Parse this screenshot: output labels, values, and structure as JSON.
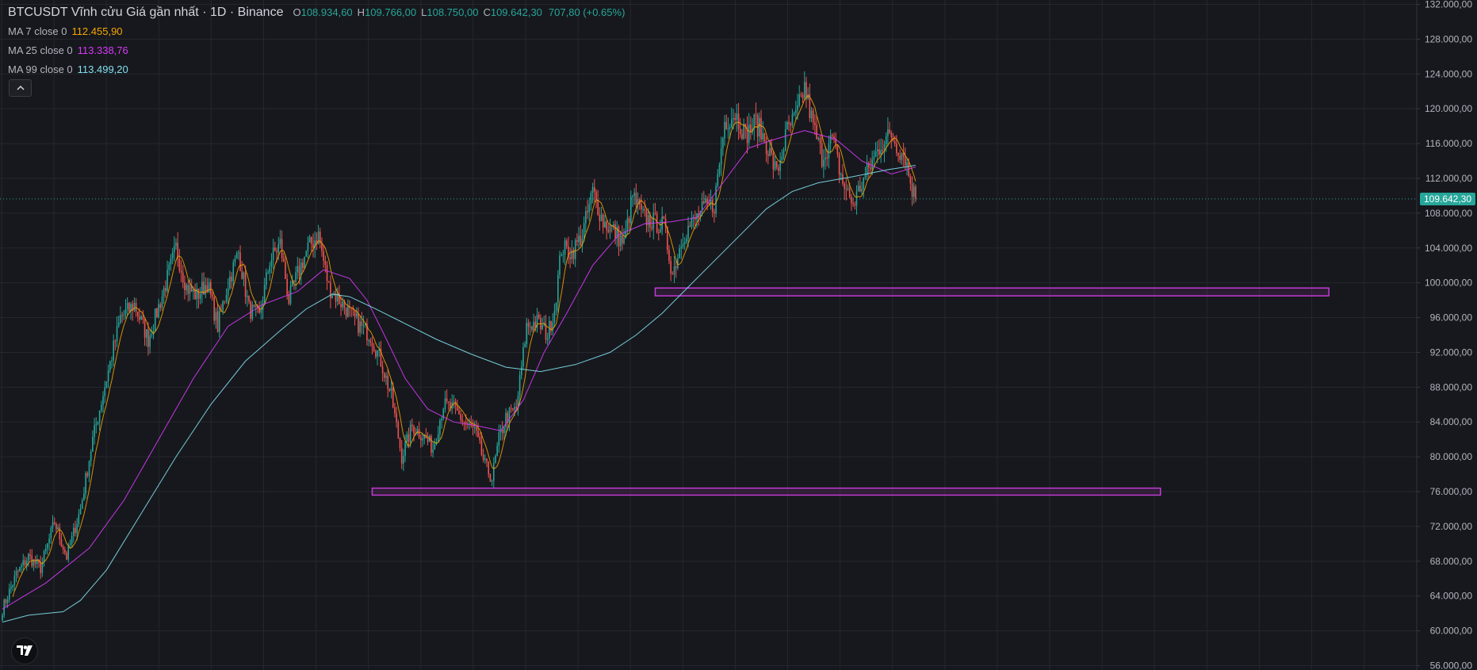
{
  "header": {
    "title": "BTCUSDT Vĩnh cửu Giá gần nhất · 1D · Binance",
    "o_label": "O",
    "o_value": "108.934,60",
    "h_label": "H",
    "h_value": "109.766,00",
    "l_label": "L",
    "l_value": "108.750,00",
    "c_label": "C",
    "c_value": "109.642,30",
    "change": "707,80 (+0.65%)"
  },
  "indicators": [
    {
      "label": "MA 7 close 0",
      "value": "112.455,90",
      "color": "#f7a600"
    },
    {
      "label": "MA 25 close 0",
      "value": "113.338,76",
      "color": "#d63af9"
    },
    {
      "label": "MA 99 close 0",
      "value": "113.499,20",
      "color": "#7fe0ef"
    }
  ],
  "colors": {
    "up": "#26a69a",
    "down": "#ef5350",
    "zone": "#c33ad6",
    "background": "#17181d",
    "grid": "#25272e",
    "axis_text": "#b2b5be"
  },
  "icons": {
    "collapse": "chevron-up-icon",
    "logo": "tradingview-logo-icon"
  },
  "chart_data": {
    "type": "candlestick",
    "symbol": "BTCUSDT",
    "interval": "1D",
    "y_ticks": [
      "56.000,00",
      "60.000,00",
      "64.000,00",
      "68.000,00",
      "72.000,00",
      "76.000,00",
      "80.000,00",
      "84.000,00",
      "88.000,00",
      "92.000,00",
      "96.000,00",
      "100.000,00",
      "104.000,00",
      "108.000,00",
      "112.000,00",
      "116.000,00",
      "120.000,00",
      "124.000,00",
      "128.000,00",
      "132.000,00"
    ],
    "y_tick_values": [
      56000,
      60000,
      64000,
      68000,
      72000,
      76000,
      80000,
      84000,
      88000,
      92000,
      96000,
      100000,
      104000,
      108000,
      112000,
      116000,
      120000,
      124000,
      128000,
      132000
    ],
    "ylim": [
      55500,
      132500
    ],
    "last_price": 109642.3,
    "last_price_label": "109.642,30",
    "close_path": [
      [
        0,
        62500
      ],
      [
        8,
        66500
      ],
      [
        15,
        68500
      ],
      [
        22,
        67200
      ],
      [
        30,
        72500
      ],
      [
        37,
        68500
      ],
      [
        45,
        74000
      ],
      [
        52,
        82000
      ],
      [
        60,
        89000
      ],
      [
        68,
        96000
      ],
      [
        76,
        97500
      ],
      [
        84,
        93500
      ],
      [
        92,
        98500
      ],
      [
        100,
        104000
      ],
      [
        106,
        99500
      ],
      [
        112,
        98500
      ],
      [
        118,
        100000
      ],
      [
        124,
        95000
      ],
      [
        130,
        100000
      ],
      [
        136,
        103500
      ],
      [
        142,
        97000
      ],
      [
        148,
        96000
      ],
      [
        154,
        102500
      ],
      [
        160,
        104500
      ],
      [
        165,
        98000
      ],
      [
        170,
        101000
      ],
      [
        176,
        104000
      ],
      [
        182,
        105500
      ],
      [
        188,
        99500
      ],
      [
        194,
        98000
      ],
      [
        200,
        96500
      ],
      [
        206,
        95000
      ],
      [
        212,
        94000
      ],
      [
        218,
        91000
      ],
      [
        224,
        87000
      ],
      [
        230,
        80000
      ],
      [
        236,
        83500
      ],
      [
        242,
        82500
      ],
      [
        248,
        81000
      ],
      [
        254,
        86000
      ],
      [
        260,
        85500
      ],
      [
        266,
        84000
      ],
      [
        272,
        83000
      ],
      [
        278,
        79000
      ],
      [
        282,
        77500
      ],
      [
        286,
        82000
      ],
      [
        290,
        84500
      ],
      [
        296,
        85500
      ],
      [
        302,
        95000
      ],
      [
        308,
        95500
      ],
      [
        314,
        94000
      ],
      [
        318,
        97000
      ],
      [
        322,
        104000
      ],
      [
        328,
        103500
      ],
      [
        334,
        105500
      ],
      [
        340,
        110500
      ],
      [
        346,
        107000
      ],
      [
        352,
        106000
      ],
      [
        358,
        104500
      ],
      [
        363,
        110000
      ],
      [
        369,
        107500
      ],
      [
        375,
        107000
      ],
      [
        381,
        106500
      ],
      [
        386,
        101000
      ],
      [
        392,
        105500
      ],
      [
        398,
        107000
      ],
      [
        404,
        108500
      ],
      [
        410,
        109000
      ],
      [
        416,
        118500
      ],
      [
        422,
        119500
      ],
      [
        428,
        117000
      ],
      [
        434,
        118500
      ],
      [
        440,
        116000
      ],
      [
        446,
        112500
      ],
      [
        452,
        117500
      ],
      [
        457,
        119000
      ],
      [
        462,
        122500
      ],
      [
        467,
        118000
      ],
      [
        472,
        114500
      ],
      [
        478,
        116500
      ],
      [
        484,
        111500
      ],
      [
        490,
        109000
      ],
      [
        494,
        111000
      ],
      [
        500,
        113500
      ],
      [
        506,
        116000
      ],
      [
        512,
        117000
      ],
      [
        516,
        115500
      ],
      [
        520,
        114500
      ],
      [
        523,
        111500
      ],
      [
        526,
        109600
      ]
    ],
    "moving_averages": [
      {
        "name": "MA 25 close 0",
        "points": [
          [
            0,
            62500
          ],
          [
            25,
            65500
          ],
          [
            50,
            69500
          ],
          [
            70,
            75000
          ],
          [
            90,
            82000
          ],
          [
            110,
            89000
          ],
          [
            130,
            95000
          ],
          [
            150,
            97500
          ],
          [
            170,
            99000
          ],
          [
            185,
            101500
          ],
          [
            200,
            100500
          ],
          [
            210,
            98000
          ],
          [
            220,
            94000
          ],
          [
            232,
            89000
          ],
          [
            245,
            85500
          ],
          [
            260,
            84000
          ],
          [
            275,
            83500
          ],
          [
            287,
            83000
          ],
          [
            300,
            86500
          ],
          [
            312,
            92000
          ],
          [
            325,
            96500
          ],
          [
            340,
            102000
          ],
          [
            355,
            105500
          ],
          [
            370,
            106800
          ],
          [
            385,
            107000
          ],
          [
            400,
            107500
          ],
          [
            415,
            111500
          ],
          [
            430,
            115500
          ],
          [
            445,
            116500
          ],
          [
            462,
            117500
          ],
          [
            480,
            116500
          ],
          [
            495,
            114000
          ],
          [
            512,
            112500
          ],
          [
            526,
            113300
          ]
        ]
      },
      {
        "name": "MA 99 close 0",
        "points": [
          [
            0,
            61000
          ],
          [
            15,
            61800
          ],
          [
            35,
            62200
          ],
          [
            45,
            63500
          ],
          [
            60,
            67000
          ],
          [
            80,
            73500
          ],
          [
            100,
            80000
          ],
          [
            120,
            86000
          ],
          [
            140,
            91000
          ],
          [
            160,
            94500
          ],
          [
            175,
            97000
          ],
          [
            190,
            98700
          ],
          [
            200,
            98400
          ],
          [
            215,
            97000
          ],
          [
            230,
            95500
          ],
          [
            250,
            93500
          ],
          [
            270,
            91800
          ],
          [
            290,
            90300
          ],
          [
            310,
            89800
          ],
          [
            330,
            90600
          ],
          [
            350,
            92000
          ],
          [
            365,
            94000
          ],
          [
            380,
            96500
          ],
          [
            395,
            99500
          ],
          [
            410,
            102500
          ],
          [
            425,
            105500
          ],
          [
            440,
            108500
          ],
          [
            455,
            110500
          ],
          [
            470,
            111500
          ],
          [
            490,
            112200
          ],
          [
            510,
            113000
          ],
          [
            526,
            113500
          ]
        ]
      }
    ],
    "zones": [
      {
        "from_bar": 376,
        "to_bar": 764,
        "low": 98500,
        "high": 99400
      },
      {
        "from_bar": 213,
        "to_bar": 667,
        "low": 75600,
        "high": 76400
      }
    ]
  }
}
